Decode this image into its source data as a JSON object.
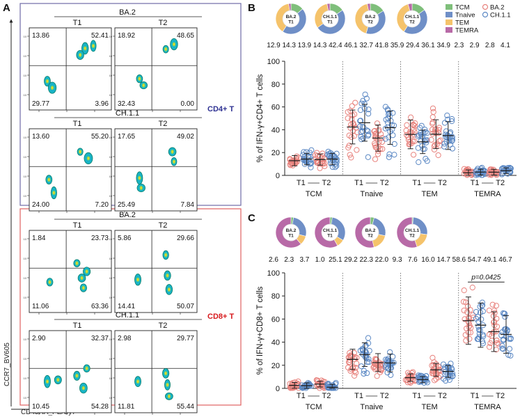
{
  "panel_labels": {
    "a": "A",
    "b": "B",
    "c": "C"
  },
  "colors": {
    "ba2": "#e8837e",
    "ch11": "#5b88c4",
    "tcm": "#7fbf7b",
    "tnaive": "#6f8fc7",
    "tem": "#f5c36b",
    "temra": "#b86aa7",
    "cd4_box": "#6e6aa6",
    "cd8_box": "#e06060",
    "cd4_text": "#2e3192",
    "cd8_text": "#d7191c"
  },
  "flow": {
    "y_axis_label": "CCR7_BV605",
    "x_axis_label": "CD45RA_PE/Cy7",
    "cd4_label": "CD4+ T",
    "cd8_label": "CD8+ T",
    "groups": [
      {
        "title": "BA.2",
        "t1": "T1",
        "t2": "T2",
        "plots": [
          {
            "ul": "13.86",
            "ur": "52.41",
            "ll": "29.77",
            "lr": "3.96"
          },
          {
            "ul": "18.92",
            "ur": "48.65",
            "ll": "32.43",
            "lr": "0.00"
          }
        ]
      },
      {
        "title": "CH.1.1",
        "t1": "T1",
        "t2": "T2",
        "plots": [
          {
            "ul": "13.60",
            "ur": "55.20",
            "ll": "24.00",
            "lr": "7.20"
          },
          {
            "ul": "17.65",
            "ur": "49.02",
            "ll": "25.49",
            "lr": "7.84"
          }
        ]
      },
      {
        "title": "BA.2",
        "t1": "T1",
        "t2": "T2",
        "plots": [
          {
            "ul": "1.84",
            "ur": "23.73",
            "ll": "11.06",
            "lr": "63.36"
          },
          {
            "ul": "5.86",
            "ur": "29.66",
            "ll": "14.41",
            "lr": "50.07"
          }
        ]
      },
      {
        "title": "CH.1.1",
        "t1": "T1",
        "t2": "T2",
        "plots": [
          {
            "ul": "2.90",
            "ur": "32.37",
            "ll": "10.45",
            "lr": "54.28"
          },
          {
            "ul": "2.98",
            "ur": "29.77",
            "ll": "11.81",
            "lr": "55.44"
          }
        ]
      }
    ]
  },
  "chart_data": [
    {
      "type": "scatter",
      "title": "% of IFN-γ+CD4+ T cells",
      "ylabel": "% of IFN-γ+CD4+ T cells",
      "ylim": [
        0,
        100
      ],
      "yticks": [
        0,
        20,
        40,
        60,
        80,
        100
      ],
      "categories": [
        "TCM",
        "Tnaive",
        "TEM",
        "TEMRA"
      ],
      "subgroups": [
        "T1",
        "T2"
      ],
      "series": [
        {
          "name": "BA.2"
        },
        {
          "name": "CH.1.1"
        }
      ],
      "means": {
        "TCM": {
          "T1": {
            "BA.2": 12.9,
            "CH.1.1": 14.3
          },
          "T2": {
            "BA.2": 13.9,
            "CH.1.1": 14.3
          }
        },
        "Tnaive": {
          "T1": {
            "BA.2": 42.4,
            "CH.1.1": 46.1
          },
          "T2": {
            "BA.2": 32.7,
            "CH.1.1": 41.8
          }
        },
        "TEM": {
          "T1": {
            "BA.2": 35.9,
            "CH.1.1": 29.4
          },
          "T2": {
            "BA.2": 36.1,
            "CH.1.1": 34.9
          }
        },
        "TEMRA": {
          "T1": {
            "BA.2": 2.3,
            "CH.1.1": 2.9
          },
          "T2": {
            "BA.2": 2.8,
            "CH.1.1": 4.1
          }
        }
      },
      "pie_numbers": [
        "12.9",
        "14.3",
        "13.9",
        "14.3",
        "42.4",
        "46.1",
        "32.7",
        "41.8",
        "35.9",
        "29.4",
        "36.1",
        "34.9",
        "2.3",
        "2.9",
        "2.8",
        "4.1"
      ],
      "pies": [
        {
          "label": "BA.2 T1",
          "values": [
            12.9,
            42.4,
            35.9,
            2.3
          ]
        },
        {
          "label": "CH.1.1 T1",
          "values": [
            14.3,
            46.1,
            29.4,
            2.9
          ]
        },
        {
          "label": "BA.2 T2",
          "values": [
            13.9,
            32.7,
            36.1,
            2.8
          ]
        },
        {
          "label": "CH.1.1 T2",
          "values": [
            14.3,
            41.8,
            34.9,
            4.1
          ]
        }
      ],
      "legend": [
        "TCM",
        "Tnaive",
        "TEM",
        "TEMRA",
        "BA.2",
        "CH.1.1"
      ],
      "annotation": ""
    },
    {
      "type": "scatter",
      "title": "% of IFN-γ+CD8+ T cells",
      "ylabel": "% of IFN-γ+CD8+ T cells",
      "ylim": [
        0,
        100
      ],
      "yticks": [
        0,
        20,
        40,
        60,
        80,
        100
      ],
      "categories": [
        "TCM",
        "Tnaive",
        "TEM",
        "TEMRA"
      ],
      "subgroups": [
        "T1",
        "T2"
      ],
      "series": [
        {
          "name": "BA.2"
        },
        {
          "name": "CH.1.1"
        }
      ],
      "means": {
        "TCM": {
          "T1": {
            "BA.2": 2.6,
            "CH.1.1": 2.3
          },
          "T2": {
            "BA.2": 3.7,
            "CH.1.1": 1.0
          }
        },
        "Tnaive": {
          "T1": {
            "BA.2": 25.1,
            "CH.1.1": 29.2
          },
          "T2": {
            "BA.2": 22.3,
            "CH.1.1": 22.0
          }
        },
        "TEM": {
          "T1": {
            "BA.2": 9.3,
            "CH.1.1": 7.6
          },
          "T2": {
            "BA.2": 16.0,
            "CH.1.1": 14.7
          }
        },
        "TEMRA": {
          "T1": {
            "BA.2": 58.6,
            "CH.1.1": 54.7
          },
          "T2": {
            "BA.2": 49.1,
            "CH.1.1": 46.7
          }
        }
      },
      "pie_numbers": [
        "2.6",
        "2.3",
        "3.7",
        "1.0",
        "25.1",
        "29.2",
        "22.3",
        "22.0",
        "9.3",
        "7.6",
        "16.0",
        "14.7",
        "58.6",
        "54.7",
        "49.1",
        "46.7"
      ],
      "pies": [
        {
          "label": "BA.2 T1",
          "values": [
            2.6,
            25.1,
            9.3,
            58.6
          ]
        },
        {
          "label": "CH.1.1 T1",
          "values": [
            2.3,
            29.2,
            7.6,
            54.7
          ]
        },
        {
          "label": "BA.2 T2",
          "values": [
            3.7,
            22.3,
            16.0,
            49.1
          ]
        },
        {
          "label": "CH.1.1 T2",
          "values": [
            1.0,
            22.0,
            14.7,
            46.7
          ]
        }
      ],
      "legend": [],
      "annotation": "p=0.0425"
    }
  ]
}
